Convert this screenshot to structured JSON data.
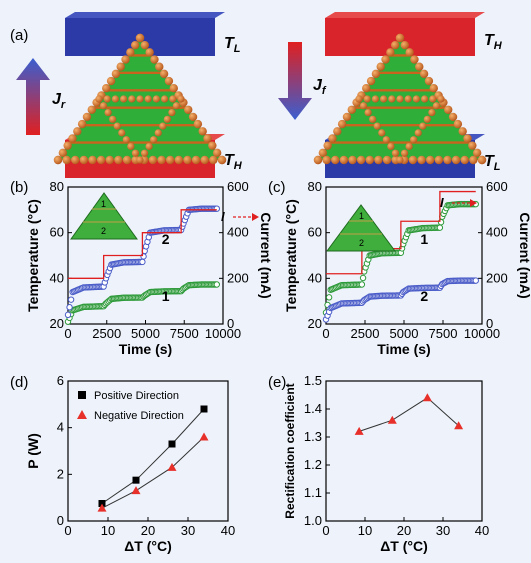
{
  "panels": {
    "a": {
      "letter": "(a)",
      "left": {
        "top_label": "T",
        "top_sub": "L",
        "bottom_label": "T",
        "bottom_sub": "H",
        "flux_label": "J",
        "flux_sub": "r"
      },
      "right": {
        "top_label": "T",
        "top_sub": "H",
        "bottom_label": "T",
        "bottom_sub": "L",
        "flux_label": "J",
        "flux_sub": "f"
      },
      "colors": {
        "cold": "#2b3aa6",
        "hot": "#d8242a",
        "atom": "#c8641e",
        "layer": "#2fae3a"
      }
    },
    "b": {
      "letter": "(b)",
      "inset_labels": [
        "1",
        "2"
      ],
      "current_label": "I"
    },
    "c": {
      "letter": "(c)",
      "inset_labels": [
        "1",
        "2"
      ],
      "current_label": "I"
    },
    "d": {
      "letter": "(d)"
    },
    "e": {
      "letter": "(e)"
    }
  },
  "chart_data": [
    {
      "type": "line",
      "panel": "b",
      "xlabel": "Time (s)",
      "ylabel": "Temperature (°C)",
      "y2label": "Current (mA)",
      "xlim": [
        0,
        10000
      ],
      "ylim": [
        20,
        80
      ],
      "y2lim": [
        0,
        600
      ],
      "xticks": [
        0,
        2500,
        5000,
        7500,
        10000
      ],
      "yticks": [
        20,
        40,
        60,
        80
      ],
      "y2ticks": [
        0,
        200,
        400,
        600
      ],
      "series": [
        {
          "name": "1",
          "color": "#2e9a3a",
          "x": [
            0,
            300,
            1000,
            2300,
            2450,
            2800,
            3600,
            4800,
            4950,
            5300,
            6200,
            7300,
            7450,
            7800,
            8600,
            9600
          ],
          "y": [
            21,
            26,
            27.5,
            27.8,
            29,
            31,
            31.5,
            31.6,
            32.5,
            34,
            34.3,
            34.4,
            35.5,
            37,
            37.3,
            37.3
          ]
        },
        {
          "name": "2",
          "color": "#4a5cc8",
          "x": [
            0,
            300,
            1000,
            2300,
            2450,
            2800,
            3600,
            4800,
            4950,
            5300,
            6200,
            7300,
            7450,
            7800,
            8600,
            9600
          ],
          "y": [
            24,
            34,
            36,
            36.4,
            40,
            46,
            47,
            47.2,
            52,
            60,
            61,
            61.2,
            64,
            70,
            70.5,
            70.5
          ]
        },
        {
          "name": "I",
          "color": "#e02020",
          "axis": "y2",
          "x": [
            0,
            2300,
            2300,
            4800,
            4800,
            7300,
            7300,
            9600
          ],
          "y": [
            200,
            200,
            300,
            300,
            400,
            400,
            500,
            500
          ]
        }
      ]
    },
    {
      "type": "line",
      "panel": "c",
      "xlabel": "Time (s)",
      "ylabel": "Temperature (°C)",
      "y2label": "Current (mA)",
      "xlim": [
        0,
        10000
      ],
      "ylim": [
        20,
        80
      ],
      "y2lim": [
        0,
        600
      ],
      "xticks": [
        0,
        2500,
        5000,
        7500,
        10000
      ],
      "yticks": [
        20,
        40,
        60,
        80
      ],
      "y2ticks": [
        0,
        200,
        400,
        600
      ],
      "series": [
        {
          "name": "1",
          "color": "#2e9a3a",
          "x": [
            0,
            300,
            1000,
            2300,
            2450,
            2800,
            3600,
            4800,
            4950,
            5300,
            6200,
            7300,
            7450,
            7800,
            8600,
            9600
          ],
          "y": [
            25,
            35,
            37,
            37.3,
            43,
            50,
            51,
            51.2,
            55,
            61,
            62,
            62.2,
            67,
            72,
            72.5,
            72.5
          ]
        },
        {
          "name": "2",
          "color": "#4a5cc8",
          "x": [
            0,
            300,
            1000,
            2300,
            2450,
            2800,
            3600,
            4800,
            4950,
            5300,
            6200,
            7300,
            7450,
            7800,
            8600,
            9600
          ],
          "y": [
            22,
            27,
            29,
            29.3,
            30.5,
            32,
            32.4,
            32.5,
            34,
            35.5,
            35.8,
            35.9,
            37.5,
            38.8,
            39,
            39
          ]
        },
        {
          "name": "I",
          "color": "#e02020",
          "axis": "y2",
          "x": [
            0,
            2300,
            2300,
            4800,
            4800,
            7300,
            7300,
            9600
          ],
          "y": [
            220,
            220,
            330,
            330,
            450,
            450,
            580,
            580
          ]
        }
      ]
    },
    {
      "type": "line",
      "panel": "d",
      "xlabel": "ΔT (°C)",
      "ylabel": "P (W)",
      "xlim": [
        0,
        40
      ],
      "ylim": [
        0,
        6
      ],
      "xticks": [
        0,
        10,
        20,
        30,
        40
      ],
      "yticks": [
        0,
        2,
        4,
        6
      ],
      "legend": "top-left",
      "series": [
        {
          "name": "Positive Direction",
          "color": "#000000",
          "marker": "square",
          "x": [
            8.5,
            17,
            26,
            34
          ],
          "y": [
            0.75,
            1.75,
            3.3,
            4.8
          ]
        },
        {
          "name": "Negative Direction",
          "color": "#e8302a",
          "marker": "triangle",
          "x": [
            8.5,
            17,
            26,
            34
          ],
          "y": [
            0.55,
            1.3,
            2.3,
            3.6
          ]
        }
      ]
    },
    {
      "type": "line",
      "panel": "e",
      "xlabel": "ΔT (°C)",
      "ylabel": "Rectification coefficient",
      "xlim": [
        0,
        40
      ],
      "ylim": [
        1.0,
        1.5
      ],
      "xticks": [
        0,
        10,
        20,
        30,
        40
      ],
      "yticks": [
        1.0,
        1.1,
        1.2,
        1.3,
        1.4,
        1.5
      ],
      "series": [
        {
          "name": "",
          "color": "#e8302a",
          "marker": "triangle",
          "x": [
            8.5,
            17,
            26,
            34
          ],
          "y": [
            1.32,
            1.36,
            1.44,
            1.34
          ]
        }
      ]
    }
  ]
}
